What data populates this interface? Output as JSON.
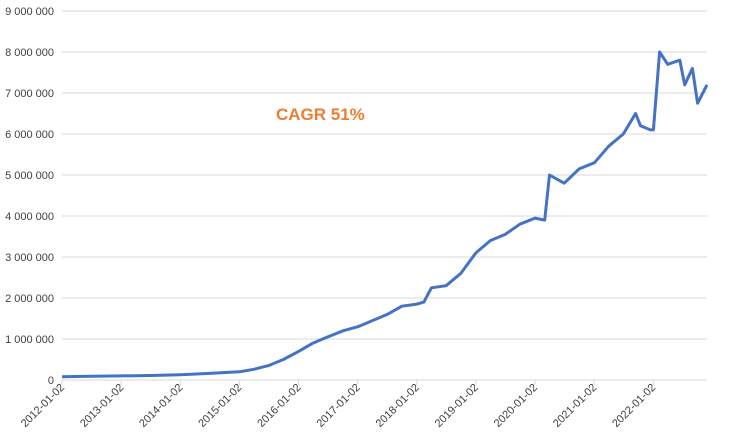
{
  "chart_data": {
    "type": "line",
    "title": "",
    "xlabel": "",
    "ylabel": "",
    "annotation": "CAGR 51%",
    "annotation_color": "#ed7d31",
    "line_color": "#4472c4",
    "grid": true,
    "legend": "none",
    "ylim": [
      0,
      9000000
    ],
    "xlim": [
      "2012-01-02",
      "2022-11-30"
    ],
    "y_ticks": [
      0,
      1000000,
      2000000,
      3000000,
      4000000,
      5000000,
      6000000,
      7000000,
      8000000,
      9000000
    ],
    "y_tick_labels": [
      "0",
      "1 000 000",
      "2 000 000",
      "3 000 000",
      "4 000 000",
      "5 000 000",
      "6 000 000",
      "7 000 000",
      "8 000 000",
      "9 000 000"
    ],
    "x_tick_labels": [
      "2012-01-02",
      "2013-01-02",
      "2014-01-02",
      "2015-01-02",
      "2016-01-02",
      "2017-01-02",
      "2018-01-02",
      "2019-01-02",
      "2020-01-02",
      "2021-01-02",
      "2022-01-02"
    ],
    "series": [
      {
        "x": [
          "2012-01-02",
          "2012-07-02",
          "2013-01-02",
          "2013-07-02",
          "2014-01-02",
          "2014-07-01",
          "2015-01-02",
          "2015-04-01",
          "2015-07-01",
          "2015-10-01",
          "2016-01-04",
          "2016-04-01",
          "2016-07-01",
          "2016-10-03",
          "2017-01-03",
          "2017-04-03",
          "2017-07-03",
          "2017-10-02",
          "2018-01-02",
          "2018-02-15",
          "2018-04-02",
          "2018-07-02",
          "2018-10-01",
          "2019-01-02",
          "2019-04-01",
          "2019-07-01",
          "2019-10-01",
          "2020-01-02",
          "2020-03-02",
          "2020-04-01",
          "2020-07-01",
          "2020-10-01",
          "2021-01-04",
          "2021-04-01",
          "2021-07-01",
          "2021-09-15",
          "2021-10-15",
          "2021-12-15",
          "2022-01-03",
          "2022-02-10",
          "2022-04-01",
          "2022-06-15",
          "2022-07-15",
          "2022-09-01",
          "2022-10-03",
          "2022-11-30"
        ],
        "y": [
          80000,
          90000,
          100000,
          110000,
          130000,
          160000,
          200000,
          260000,
          350000,
          500000,
          700000,
          900000,
          1050000,
          1200000,
          1300000,
          1450000,
          1600000,
          1800000,
          1850000,
          1900000,
          2250000,
          2300000,
          2600000,
          3100000,
          3400000,
          3550000,
          3800000,
          3950000,
          3900000,
          5000000,
          4800000,
          5150000,
          5300000,
          5700000,
          6000000,
          6500000,
          6200000,
          6100000,
          6100000,
          8000000,
          7700000,
          7800000,
          7200000,
          7600000,
          6750000,
          7200000
        ]
      }
    ]
  }
}
